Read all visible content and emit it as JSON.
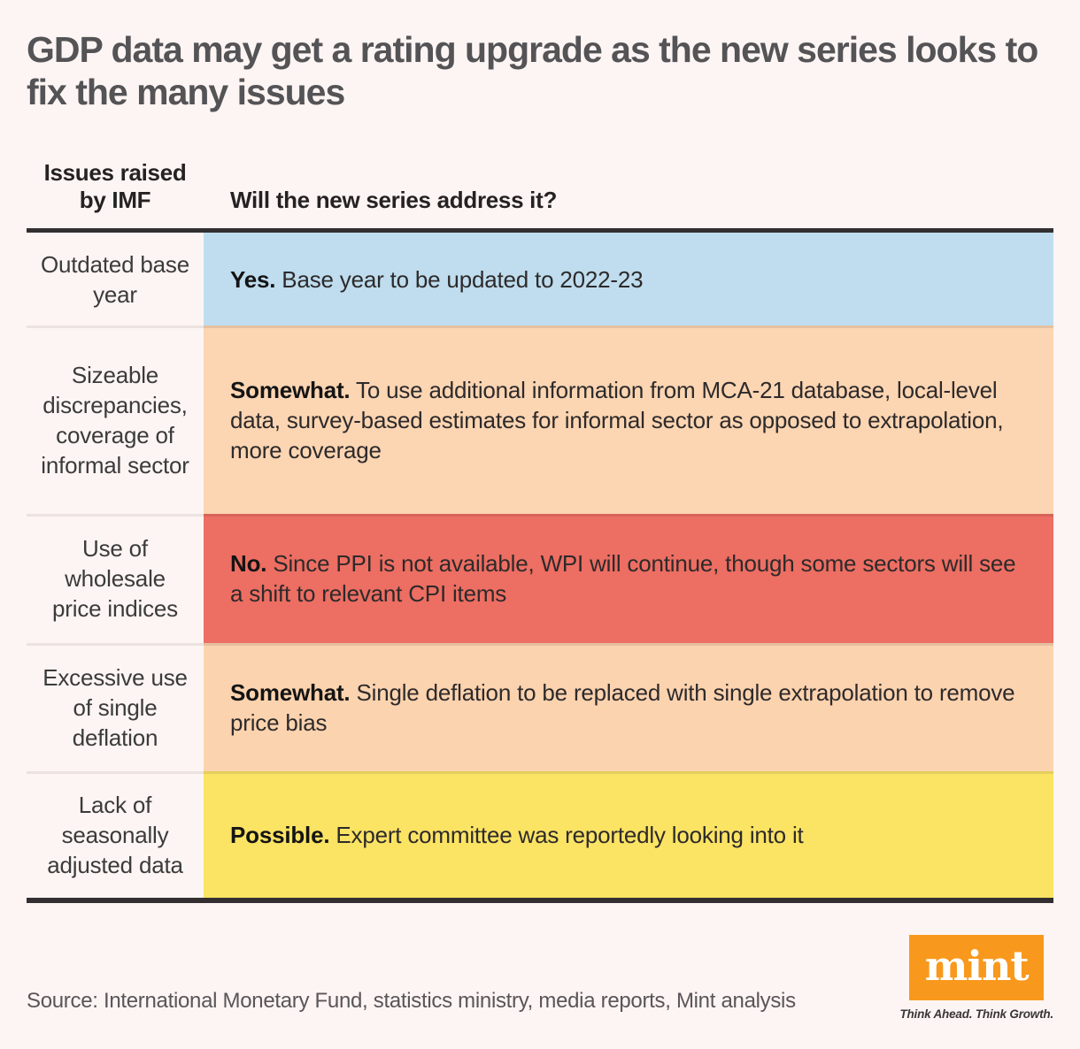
{
  "title": "GDP data may get a rating upgrade as the new series looks to fix the many issues",
  "table": {
    "col1_header": "Issues raised by IMF",
    "col2_header": "Will the new series address it?",
    "rows": [
      {
        "issue": "Outdated base year",
        "verdict": "Yes.",
        "detail": "Base year to be updated to 2022-23",
        "color": "#bfddee"
      },
      {
        "issue": "Sizeable discrepancies, coverage of informal sector",
        "verdict": "Somewhat.",
        "detail": "To use additional information from MCA-21 database, local-level data, survey-based estimates for informal sector as opposed to extrapolation, more coverage",
        "color": "#fcd5b2"
      },
      {
        "issue": "Use of wholesale price indices",
        "verdict": "No.",
        "detail": "Since PPI is not available, WPI will continue, though some sectors will see a shift to relevant CPI items",
        "color": "#ed6e62"
      },
      {
        "issue": "Excessive use of single deflation",
        "verdict": "Somewhat.",
        "detail": "Single deflation to be replaced with single extrapolation to remove price bias",
        "color": "#fcd3af"
      },
      {
        "issue": "Lack of seasonally adjusted data",
        "verdict": "Possible.",
        "detail": "Expert committee was reportedly looking into it",
        "color": "#fbe364"
      }
    ]
  },
  "footer": {
    "source": "Source: International Monetary Fund, statistics ministry, media reports, Mint analysis",
    "logo_text": "mint",
    "logo_tagline": "Think Ahead. Think Growth.",
    "logo_color": "#f8991d"
  },
  "chart_data": {
    "type": "table",
    "title": "GDP data may get a rating upgrade as the new series looks to fix the many issues",
    "columns": [
      "Issues raised by IMF",
      "Will the new series address it?"
    ],
    "rows": [
      [
        "Outdated base year",
        "Yes. Base year to be updated to 2022-23"
      ],
      [
        "Sizeable discrepancies, coverage of informal sector",
        "Somewhat. To use additional information from MCA-21 database, local-level data, survey-based estimates for informal sector as opposed to extrapolation, more coverage"
      ],
      [
        "Use of wholesale price indices",
        "No. Since PPI is not available, WPI will continue, though some sectors will see a shift to relevant CPI items"
      ],
      [
        "Excessive use of single deflation",
        "Somewhat. Single deflation to be replaced with single extrapolation to remove price bias"
      ],
      [
        "Lack of seasonally adjusted data",
        "Possible. Expert committee was reportedly looking into it"
      ]
    ],
    "row_colors": [
      "#bfddee",
      "#fcd5b2",
      "#ed6e62",
      "#fcd3af",
      "#fbe364"
    ],
    "legend": {
      "Yes": "#bfddee",
      "Somewhat": "#fcd5b2",
      "No": "#ed6e62",
      "Possible": "#fbe364"
    },
    "source": "Source: International Monetary Fund, statistics ministry, media reports, Mint analysis"
  }
}
